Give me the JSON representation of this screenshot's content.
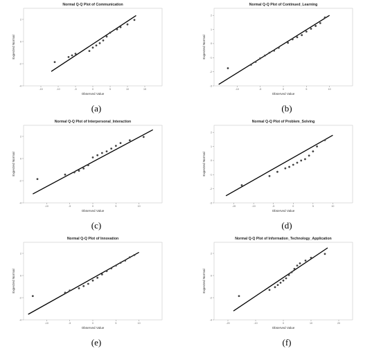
{
  "chart_data": [
    {
      "type": "scatter",
      "caption": "(a)",
      "title": "Normal Q-Q Plot of Communication",
      "xlabel": "Observed Value",
      "ylabel": "Expected Normal",
      "xlim": [
        -20,
        20
      ],
      "ylim": [
        -4,
        3
      ],
      "xticks": [
        -15,
        -10,
        -5,
        0,
        5,
        10,
        15
      ],
      "yticks": [
        -4,
        -2,
        0,
        2
      ],
      "line": {
        "x": [
          -12,
          12.5
        ],
        "y": [
          -2.7,
          2.35
        ]
      },
      "points": [
        {
          "x": -11,
          "y": -1.85
        },
        {
          "x": -7,
          "y": -1.4
        },
        {
          "x": -6,
          "y": -1.25
        },
        {
          "x": -5,
          "y": -1.1
        },
        {
          "x": -1,
          "y": -0.85
        },
        {
          "x": 0,
          "y": -0.55
        },
        {
          "x": 1,
          "y": -0.35
        },
        {
          "x": 2,
          "y": -0.15
        },
        {
          "x": 3,
          "y": 0.1
        },
        {
          "x": 4,
          "y": 0.45
        },
        {
          "x": 5,
          "y": 0.8
        },
        {
          "x": 7,
          "y": 1.1
        },
        {
          "x": 8,
          "y": 1.3
        },
        {
          "x": 10,
          "y": 1.55
        },
        {
          "x": 12,
          "y": 1.95
        }
      ]
    },
    {
      "type": "scatter",
      "caption": "(b)",
      "title": "Normal Q-Q Plot of Continued_Learning",
      "xlabel": "Observed Value",
      "ylabel": "Expected Normal",
      "xlim": [
        -15,
        15
      ],
      "ylim": [
        -3,
        2.5
      ],
      "xticks": [
        -10,
        -5,
        0,
        5,
        10
      ],
      "yticks": [
        -3,
        -2,
        -1,
        0,
        1,
        2
      ],
      "line": {
        "x": [
          -14,
          10
        ],
        "y": [
          -2.9,
          2
        ]
      },
      "points": [
        {
          "x": -12,
          "y": -1.75
        },
        {
          "x": -7,
          "y": -1.5
        },
        {
          "x": -6,
          "y": -1.3
        },
        {
          "x": -5,
          "y": -1.05
        },
        {
          "x": -4,
          "y": -0.85
        },
        {
          "x": -3,
          "y": -0.65
        },
        {
          "x": -2,
          "y": -0.5
        },
        {
          "x": -1,
          "y": -0.3
        },
        {
          "x": 1,
          "y": 0.05
        },
        {
          "x": 2,
          "y": 0.3
        },
        {
          "x": 3,
          "y": 0.45
        },
        {
          "x": 4,
          "y": 0.6
        },
        {
          "x": 5,
          "y": 0.85
        },
        {
          "x": 6,
          "y": 1.05
        },
        {
          "x": 7,
          "y": 1.25
        },
        {
          "x": 8,
          "y": 1.45
        },
        {
          "x": 9,
          "y": 1.85
        }
      ]
    },
    {
      "type": "scatter",
      "caption": "(c)",
      "title": "Normal Q-Q Plot of Interpersonal_Interaction",
      "xlabel": "Observed Value",
      "ylabel": "Expected Normal",
      "xlim": [
        -15,
        15
      ],
      "ylim": [
        -4,
        3
      ],
      "xticks": [
        -10,
        -5,
        0,
        5,
        10
      ],
      "yticks": [
        -4,
        -2,
        0,
        2
      ],
      "line": {
        "x": [
          -13,
          13
        ],
        "y": [
          -3.2,
          2.6
        ]
      },
      "points": [
        {
          "x": -12,
          "y": -1.85
        },
        {
          "x": -6,
          "y": -1.45
        },
        {
          "x": -4,
          "y": -1.25
        },
        {
          "x": -3,
          "y": -1.1
        },
        {
          "x": -2,
          "y": -0.9
        },
        {
          "x": -1,
          "y": -0.6
        },
        {
          "x": 0,
          "y": 0.1
        },
        {
          "x": 1,
          "y": 0.3
        },
        {
          "x": 2,
          "y": 0.5
        },
        {
          "x": 3,
          "y": 0.65
        },
        {
          "x": 4,
          "y": 0.9
        },
        {
          "x": 5,
          "y": 1.15
        },
        {
          "x": 6,
          "y": 1.4
        },
        {
          "x": 8,
          "y": 1.65
        },
        {
          "x": 11,
          "y": 1.95
        }
      ]
    },
    {
      "type": "scatter",
      "caption": "(d)",
      "title": "Normal Q-Q Plot of Problem_Solving",
      "xlabel": "Observed Value",
      "ylabel": "Expected Normal",
      "xlim": [
        -20,
        15
      ],
      "ylim": [
        -3,
        2.5
      ],
      "xticks": [
        -15,
        -10,
        -5,
        0,
        5,
        10
      ],
      "yticks": [
        -3,
        -2,
        -1,
        0,
        1,
        2
      ],
      "line": {
        "x": [
          -17,
          10
        ],
        "y": [
          -2.5,
          1.8
        ]
      },
      "points": [
        {
          "x": -13,
          "y": -1.75
        },
        {
          "x": -6,
          "y": -1.1
        },
        {
          "x": -4,
          "y": -0.8
        },
        {
          "x": -2,
          "y": -0.55
        },
        {
          "x": -1,
          "y": -0.45
        },
        {
          "x": 0,
          "y": -0.3
        },
        {
          "x": 1,
          "y": -0.15
        },
        {
          "x": 2,
          "y": 0
        },
        {
          "x": 3,
          "y": 0.1
        },
        {
          "x": 4,
          "y": 0.35
        },
        {
          "x": 5,
          "y": 0.65
        },
        {
          "x": 6,
          "y": 1
        },
        {
          "x": 8,
          "y": 1.45
        }
      ]
    },
    {
      "type": "scatter",
      "caption": "(e)",
      "title": "Normal Q-Q Plot of Innovation",
      "xlabel": "Observed Value",
      "ylabel": "Expected Normal",
      "xlim": [
        -15,
        15
      ],
      "ylim": [
        -4,
        3
      ],
      "xticks": [
        -10,
        -5,
        0,
        5,
        10
      ],
      "yticks": [
        -4,
        -2,
        0,
        2
      ],
      "line": {
        "x": [
          -14,
          10
        ],
        "y": [
          -3.5,
          2.1
        ]
      },
      "points": [
        {
          "x": -13,
          "y": -1.85
        },
        {
          "x": -6,
          "y": -1.55
        },
        {
          "x": -5,
          "y": -1.35
        },
        {
          "x": -3,
          "y": -1.15
        },
        {
          "x": -2,
          "y": -0.95
        },
        {
          "x": -1,
          "y": -0.75
        },
        {
          "x": 0,
          "y": -0.45
        },
        {
          "x": 1,
          "y": -0.2
        },
        {
          "x": 2,
          "y": 0.1
        },
        {
          "x": 3,
          "y": 0.4
        },
        {
          "x": 4,
          "y": 0.65
        },
        {
          "x": 5,
          "y": 0.9
        },
        {
          "x": 6,
          "y": 1.15
        },
        {
          "x": 7,
          "y": 1.35
        },
        {
          "x": 8,
          "y": 1.65
        },
        {
          "x": 9,
          "y": 1.85
        }
      ]
    },
    {
      "type": "scatter",
      "caption": "(f)",
      "title": "Normal Q-Q Plot of Information_Technology_Application",
      "xlabel": "Observed Value",
      "ylabel": "Expected Normal",
      "xlim": [
        -25,
        25
      ],
      "ylim": [
        -4,
        3
      ],
      "xticks": [
        -20,
        -10,
        0,
        10,
        20
      ],
      "yticks": [
        -4,
        -2,
        0,
        2
      ],
      "line": {
        "x": [
          -18,
          16
        ],
        "y": [
          -3.2,
          2.5
        ]
      },
      "points": [
        {
          "x": -16,
          "y": -1.85
        },
        {
          "x": -5,
          "y": -1.3
        },
        {
          "x": -3,
          "y": -1.05
        },
        {
          "x": -2,
          "y": -0.85
        },
        {
          "x": -1,
          "y": -0.65
        },
        {
          "x": 0,
          "y": -0.45
        },
        {
          "x": 1,
          "y": -0.25
        },
        {
          "x": 2,
          "y": 0.05
        },
        {
          "x": 3,
          "y": 0.3
        },
        {
          "x": 4,
          "y": 0.6
        },
        {
          "x": 5,
          "y": 0.9
        },
        {
          "x": 6,
          "y": 1.1
        },
        {
          "x": 8,
          "y": 1.35
        },
        {
          "x": 10,
          "y": 1.6
        },
        {
          "x": 15,
          "y": 1.95
        }
      ]
    }
  ]
}
